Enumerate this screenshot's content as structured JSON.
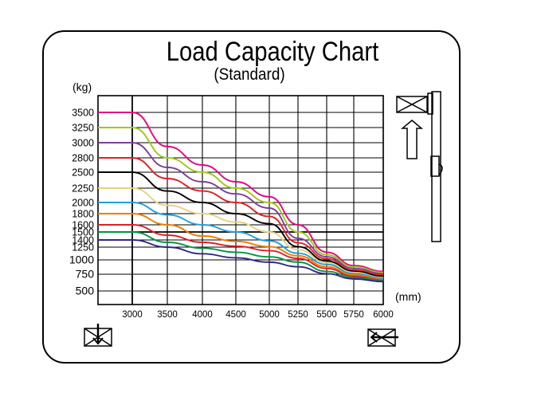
{
  "chart_data": {
    "type": "line",
    "title": "Load Capacity Chart",
    "subtitle": "(Standard)",
    "ylabel": "(kg)",
    "xlabel": "(mm)",
    "yticks": [
      500,
      750,
      1000,
      1250,
      1400,
      1500,
      1600,
      1800,
      2000,
      2250,
      2500,
      2800,
      3000,
      3250,
      3500
    ],
    "xticks": [
      3000,
      3500,
      4000,
      4500,
      5000,
      5250,
      5500,
      5750,
      6000
    ],
    "xlim": [
      2550,
      6000
    ],
    "x": [
      2550,
      3000,
      3500,
      4000,
      4500,
      5000,
      5250,
      5500,
      5750,
      6000
    ],
    "series": [
      {
        "color": "#e6007e",
        "values": [
          3500,
          3500,
          2950,
          2650,
          2350,
          2100,
          1600,
          1150,
          900,
          800
        ]
      },
      {
        "color": "#a0c814",
        "values": [
          3250,
          3250,
          2800,
          2500,
          2250,
          2000,
          1500,
          1100,
          880,
          780
        ]
      },
      {
        "color": "#7b3f98",
        "values": [
          3000,
          3000,
          2600,
          2350,
          2150,
          1900,
          1420,
          1060,
          850,
          760
        ]
      },
      {
        "color": "#e31e24",
        "values": [
          2800,
          2800,
          2400,
          2200,
          2000,
          1750,
          1340,
          1020,
          820,
          740
        ]
      },
      {
        "color": "#000000",
        "values": [
          2500,
          2500,
          2200,
          2000,
          1800,
          1620,
          1260,
          980,
          800,
          720
        ]
      },
      {
        "color": "#e6d280",
        "values": [
          2250,
          2250,
          1950,
          1800,
          1650,
          1500,
          1200,
          950,
          780,
          700
        ]
      },
      {
        "color": "#1ea0dc",
        "values": [
          2000,
          2000,
          1780,
          1600,
          1500,
          1380,
          1130,
          920,
          760,
          690
        ]
      },
      {
        "color": "#ee7d00",
        "values": [
          1800,
          1800,
          1600,
          1450,
          1370,
          1260,
          1080,
          880,
          740,
          670
        ]
      },
      {
        "color": "#e31e24",
        "values": [
          1600,
          1600,
          1460,
          1350,
          1270,
          1180,
          1030,
          850,
          720,
          660
        ]
      },
      {
        "color": "#009640",
        "values": [
          1500,
          1500,
          1350,
          1230,
          1150,
          1060,
          960,
          800,
          700,
          650
        ]
      },
      {
        "color": "#312783",
        "values": [
          1400,
          1400,
          1250,
          1120,
          1040,
          960,
          880,
          760,
          680,
          640
        ]
      }
    ],
    "reference_line": 1500
  }
}
